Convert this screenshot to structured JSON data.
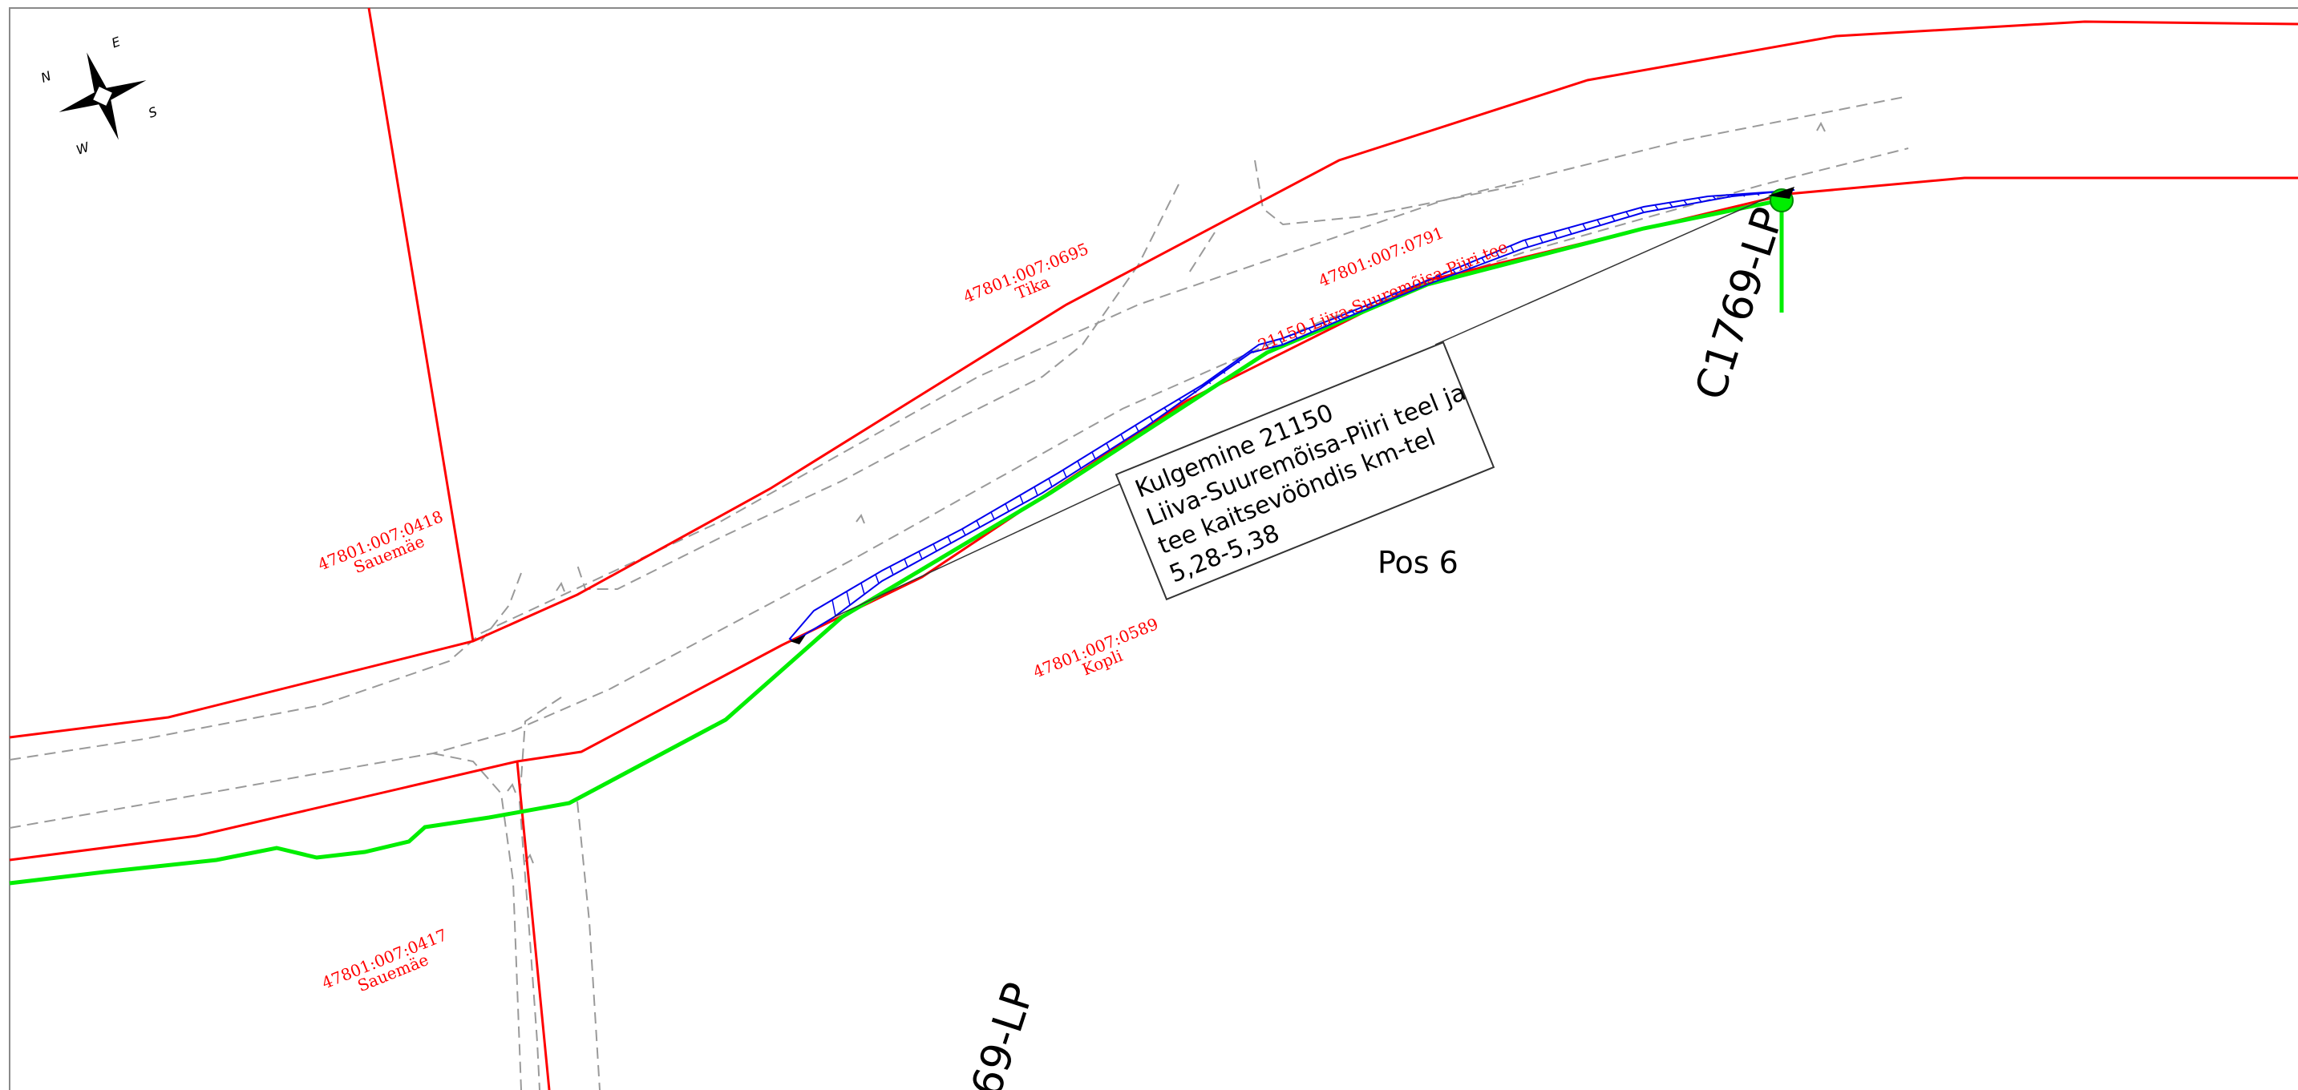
{
  "compass": {
    "n": "N",
    "e": "E",
    "s": "S",
    "w": "W"
  },
  "parcels": [
    {
      "id": "47801:007:0695",
      "name": "Tika"
    },
    {
      "id": "47801:007:0791",
      "name": "21150  Liiva-Suuremõisa-Piiri  tee"
    },
    {
      "id": "47801:007:0418",
      "name": "Sauemäe"
    },
    {
      "id": "47801:007:0589",
      "name": "Kopli"
    },
    {
      "id": "47801:007:0417",
      "name": "Sauemäe"
    }
  ],
  "labels": {
    "pole_top": "C1769-LP",
    "pole_bottom": "69-LP",
    "position": "Pos 6"
  },
  "callout": {
    "lines": [
      "Kulgemine 21150",
      "Liiva-Suuremõisa-Piiri teel ja",
      "tee kaitsevööndis km-tel",
      "5,28-5,38"
    ]
  },
  "colors": {
    "parcel_boundary": "#ff0000",
    "cable_route": "#00ee00",
    "road_edge": "#9a9a9a",
    "hatch": "#0000ee",
    "text": "#000000"
  }
}
